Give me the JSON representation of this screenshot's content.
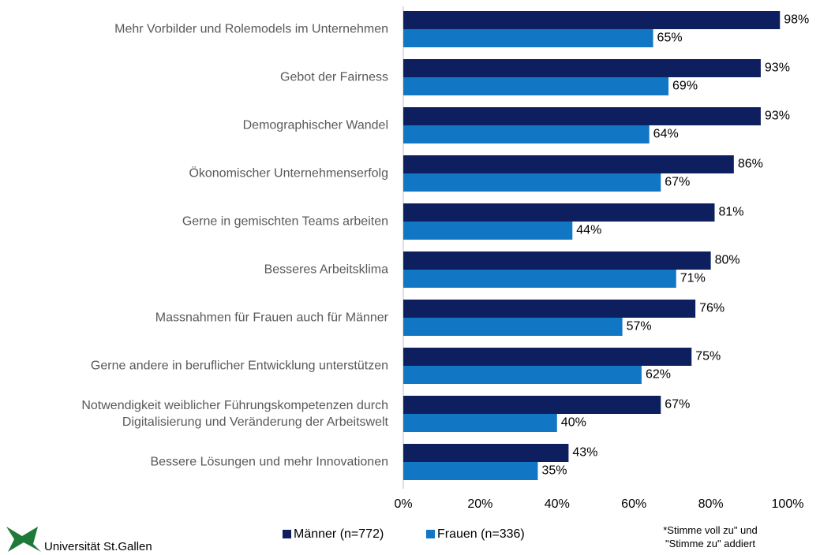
{
  "chart_data": {
    "type": "bar",
    "orientation": "horizontal",
    "categories": [
      "Mehr Vorbilder und Rolemodels im Unternehmen",
      "Gebot der Fairness",
      "Demographischer Wandel",
      "Ökonomischer Unternehmenserfolg",
      "Gerne in gemischten Teams arbeiten",
      "Besseres Arbeitsklima",
      "Massnahmen für Frauen auch für Männer",
      "Gerne andere in beruflicher Entwicklung unterstützen",
      "Notwendigkeit weiblicher Führungskompetenzen durch\nDigitalisierung und Veränderung der Arbeitswelt",
      "Bessere Lösungen und mehr Innovationen"
    ],
    "series": [
      {
        "name": "Männer (n=772)",
        "color": "#0d1f5e",
        "values": [
          98,
          93,
          93,
          86,
          81,
          80,
          76,
          75,
          67,
          43
        ],
        "value_labels": [
          "98%",
          "93%",
          "93%",
          "86%",
          "81%",
          "80%",
          "76%",
          "75%",
          "67%",
          "43%"
        ]
      },
      {
        "name": "Frauen (n=336)",
        "color": "#1177c4",
        "values": [
          65,
          69,
          64,
          67,
          44,
          71,
          57,
          62,
          40,
          35
        ],
        "value_labels": [
          "65%",
          "69%",
          "64%",
          "67%",
          "44%",
          "71%",
          "57%",
          "62%",
          "40%",
          "35%"
        ]
      }
    ],
    "xlim": [
      0,
      100
    ],
    "xticks": [
      {
        "value": 0,
        "label": "0%"
      },
      {
        "value": 20,
        "label": "20%"
      },
      {
        "value": 40,
        "label": "40%"
      },
      {
        "value": 60,
        "label": "60%"
      },
      {
        "value": 80,
        "label": "80%"
      },
      {
        "value": 100,
        "label": "100%"
      }
    ],
    "grid": false,
    "legend": "bottom",
    "annotation": "*Stimme voll zu\" und\n\"Stimme zu\" addiert"
  },
  "logo": "Universität St.Gallen"
}
